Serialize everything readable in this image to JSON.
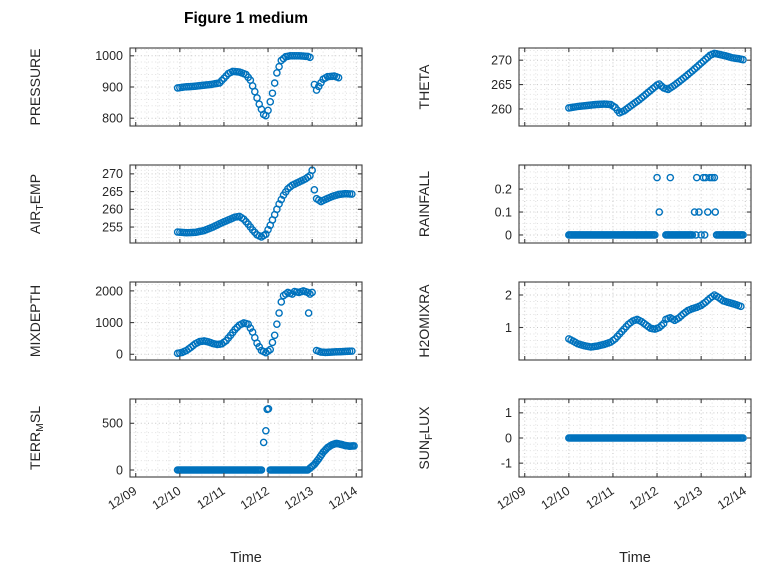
{
  "figure": {
    "title": "Figure 1 medium",
    "xlabel": "Time"
  },
  "style": {
    "marker_color": "#0072BD",
    "grid_color": "#c6c6c6",
    "minor_grid_color": "#e0e0e0",
    "axis_color": "#3c3c3c",
    "text_color": "#262626",
    "marker": "open-circle"
  },
  "xaxis": {
    "lim": [
      8.87,
      14.13
    ],
    "ticks": [
      9,
      10,
      11,
      12,
      13,
      14
    ],
    "labels": [
      "12/09",
      "12/10",
      "12/11",
      "12/12",
      "12/13",
      "12/14"
    ],
    "minor_step": 0.25
  },
  "chart_data": [
    {
      "id": "pressure",
      "type": "scatter",
      "ylabel": "PRESSURE",
      "ylabel_parts": {
        "pre": "PRESSURE",
        "sub": "",
        "post": ""
      },
      "ylim": [
        775,
        1025
      ],
      "yticks": [
        800,
        900,
        1000
      ],
      "yminor": 20,
      "marker_step": 0.045,
      "series": [
        {
          "x": [
            9.95,
            10.1,
            10.3,
            10.5,
            10.7,
            10.9,
            11.0,
            11.1,
            11.2,
            11.35,
            11.5,
            11.6,
            11.7,
            11.8,
            11.9,
            11.95,
            12.0,
            12.1,
            12.2,
            12.3,
            12.4,
            12.5,
            12.7,
            12.9,
            12.95
          ],
          "y": [
            897,
            900,
            902,
            905,
            908,
            913,
            928,
            943,
            950,
            948,
            940,
            922,
            885,
            845,
            812,
            808,
            825,
            880,
            945,
            985,
            997,
            1000,
            1000,
            998,
            995
          ]
        },
        {
          "x": [
            13.05,
            13.1,
            13.15,
            13.25,
            13.35,
            13.5,
            13.6
          ],
          "y": [
            908,
            890,
            902,
            925,
            933,
            935,
            930
          ]
        }
      ]
    },
    {
      "id": "theta",
      "type": "scatter",
      "ylabel": "THETA",
      "ylabel_parts": {
        "pre": "THETA",
        "sub": "",
        "post": ""
      },
      "ylim": [
        256.5,
        272.5
      ],
      "yticks": [
        260,
        265,
        270
      ],
      "yminor": 1,
      "marker_step": 0.045,
      "series": [
        {
          "x": [
            10.0,
            10.2,
            10.4,
            10.6,
            10.8,
            10.95,
            11.05,
            11.15,
            11.25,
            11.4,
            11.6,
            11.8,
            12.0,
            12.05,
            12.15,
            12.25,
            12.4,
            12.6,
            12.8,
            13.0,
            13.1,
            13.2,
            13.3,
            13.4,
            13.55,
            13.7,
            13.85,
            13.95
          ],
          "y": [
            260.2,
            260.5,
            260.7,
            260.9,
            261.0,
            260.9,
            260.3,
            259.2,
            259.6,
            260.6,
            261.9,
            263.4,
            264.9,
            265.1,
            264.3,
            264.0,
            264.9,
            266.3,
            267.8,
            269.4,
            270.2,
            271.0,
            271.4,
            271.2,
            270.9,
            270.5,
            270.3,
            270.1
          ]
        }
      ]
    },
    {
      "id": "air_temp",
      "type": "scatter",
      "ylabel": "AIR_TEMP",
      "ylabel_parts": {
        "pre": "AIR",
        "sub": "T",
        "post": "EMP"
      },
      "ylim": [
        250.5,
        272.5
      ],
      "yticks": [
        255,
        260,
        265,
        270
      ],
      "yminor": 1,
      "marker_step": 0.045,
      "series": [
        {
          "x": [
            9.95,
            10.15,
            10.35,
            10.55,
            10.75,
            10.95,
            11.1,
            11.25,
            11.35,
            11.45,
            11.55,
            11.65,
            11.75,
            11.85,
            11.95,
            12.05,
            12.15,
            12.25,
            12.35,
            12.45,
            12.55,
            12.65,
            12.75,
            12.85,
            12.95,
            13.0,
            13.05,
            13.1,
            13.2,
            13.3,
            13.45,
            13.6,
            13.75,
            13.9
          ],
          "y": [
            253.6,
            253.4,
            253.5,
            254.0,
            255.0,
            256.2,
            257.0,
            257.8,
            258.0,
            257.2,
            255.8,
            254.2,
            252.8,
            252.2,
            253.0,
            255.5,
            258.5,
            261.5,
            264.0,
            265.8,
            266.8,
            267.4,
            268.0,
            268.6,
            269.5,
            271.0,
            265.5,
            263.0,
            262.2,
            262.8,
            263.6,
            264.2,
            264.4,
            264.3
          ]
        }
      ]
    },
    {
      "id": "rainfall",
      "type": "scatter",
      "ylabel": "RAINFALL",
      "ylabel_parts": {
        "pre": "RAINFALL",
        "sub": "",
        "post": ""
      },
      "ylim": [
        -0.035,
        0.305
      ],
      "yticks": [
        0,
        0.1,
        0.2
      ],
      "yminor": 0.025,
      "marker_step": 0.03,
      "series": [
        {
          "x": [
            10.0,
            11.95
          ],
          "y": [
            0,
            0
          ]
        },
        {
          "x": [
            12.2,
            12.8
          ],
          "y": [
            0,
            0
          ]
        },
        {
          "x": [
            13.35,
            13.95
          ],
          "y": [
            0,
            0
          ]
        }
      ],
      "points": {
        "x": [
          12.0,
          12.3,
          12.9,
          13.05,
          13.1,
          13.2,
          13.25,
          13.3,
          12.05,
          12.85,
          12.95,
          13.15,
          13.32,
          12.88,
          13.0,
          13.08
        ],
        "y": [
          0.25,
          0.25,
          0.25,
          0.25,
          0.25,
          0.25,
          0.25,
          0.25,
          0.1,
          0.1,
          0.1,
          0.1,
          0.1,
          0,
          0,
          0
        ]
      }
    },
    {
      "id": "mixdepth",
      "type": "scatter",
      "ylabel": "MIXDEPTH",
      "ylabel_parts": {
        "pre": "MIXDEPTH",
        "sub": "",
        "post": ""
      },
      "ylim": [
        -180,
        2280
      ],
      "yticks": [
        0,
        1000,
        2000
      ],
      "yminor": 200,
      "marker_step": 0.045,
      "series": [
        {
          "x": [
            9.95,
            10.05,
            10.15,
            10.25,
            10.35,
            10.45,
            10.55,
            10.65,
            10.75,
            10.85,
            10.95,
            11.05,
            11.15,
            11.25,
            11.35,
            11.45,
            11.55,
            11.65,
            11.75,
            11.85,
            11.95,
            12.05,
            12.15,
            12.25,
            12.3,
            12.35,
            12.45,
            12.55,
            12.6,
            12.7,
            12.8,
            12.9,
            12.95,
            13.0
          ],
          "y": [
            30,
            60,
            120,
            220,
            330,
            400,
            420,
            390,
            340,
            310,
            330,
            430,
            600,
            780,
            920,
            990,
            950,
            700,
            350,
            120,
            50,
            150,
            600,
            1300,
            1650,
            1850,
            1950,
            1900,
            1980,
            1950,
            2000,
            1950,
            1900,
            1950
          ]
        },
        {
          "x": [
            13.1,
            13.2,
            13.3,
            13.45,
            13.6,
            13.75,
            13.9
          ],
          "y": [
            120,
            70,
            60,
            70,
            80,
            90,
            100
          ]
        }
      ],
      "points": {
        "x": [
          12.92
        ],
        "y": [
          1300
        ]
      }
    },
    {
      "id": "h2omixra",
      "type": "scatter",
      "ylabel": "H2OMIXRA",
      "ylabel_parts": {
        "pre": "H2OMIXRA",
        "sub": "",
        "post": ""
      },
      "ylim": [
        0,
        2.4
      ],
      "yticks": [
        1,
        2
      ],
      "yminor": 0.2,
      "marker_step": 0.045,
      "series": [
        {
          "x": [
            10.0,
            10.1,
            10.2,
            10.35,
            10.5,
            10.65,
            10.8,
            10.95,
            11.05,
            11.15,
            11.25,
            11.35,
            11.45,
            11.55,
            11.65,
            11.75,
            11.85,
            11.95,
            12.05,
            12.15,
            12.2,
            12.3,
            12.4,
            12.5,
            12.6,
            12.7,
            12.8,
            12.9,
            13.0,
            13.1,
            13.2,
            13.3,
            13.4,
            13.5,
            13.6,
            13.75,
            13.9
          ],
          "y": [
            0.65,
            0.58,
            0.5,
            0.44,
            0.4,
            0.43,
            0.48,
            0.55,
            0.65,
            0.8,
            0.95,
            1.1,
            1.2,
            1.25,
            1.18,
            1.08,
            0.98,
            0.95,
            1.0,
            1.12,
            1.25,
            1.3,
            1.22,
            1.3,
            1.42,
            1.52,
            1.58,
            1.62,
            1.68,
            1.78,
            1.9,
            2.0,
            1.92,
            1.82,
            1.78,
            1.72,
            1.65
          ]
        }
      ]
    },
    {
      "id": "terr_msl",
      "type": "scatter",
      "ylabel": "TERR_MSL",
      "ylabel_parts": {
        "pre": "TERR",
        "sub": "M",
        "post": "SL"
      },
      "ylim": [
        -75,
        760
      ],
      "yticks": [
        0,
        500
      ],
      "yminor": 100,
      "marker_step": 0.03,
      "series": [
        {
          "x": [
            9.95,
            11.85
          ],
          "y": [
            0,
            0
          ]
        },
        {
          "x": [
            12.05,
            12.9
          ],
          "y": [
            0,
            0
          ]
        },
        {
          "x": [
            12.95,
            13.05,
            13.15,
            13.25,
            13.35,
            13.45,
            13.55,
            13.65,
            13.75,
            13.85,
            13.95
          ],
          "y": [
            20,
            60,
            120,
            190,
            240,
            270,
            285,
            275,
            262,
            255,
            258
          ]
        }
      ],
      "points": {
        "x": [
          11.9,
          11.95,
          11.98,
          12.01
        ],
        "y": [
          295,
          420,
          650,
          655
        ]
      }
    },
    {
      "id": "sun_flux",
      "type": "scatter",
      "ylabel": "SUN_FLUX",
      "ylabel_parts": {
        "pre": "SUN",
        "sub": "F",
        "post": "LUX"
      },
      "ylim": [
        -1.55,
        1.55
      ],
      "yticks": [
        -1,
        0,
        1
      ],
      "yminor": 0.25,
      "marker_step": 0.03,
      "series": [
        {
          "x": [
            10.0,
            13.95
          ],
          "y": [
            0,
            0
          ]
        }
      ]
    }
  ]
}
